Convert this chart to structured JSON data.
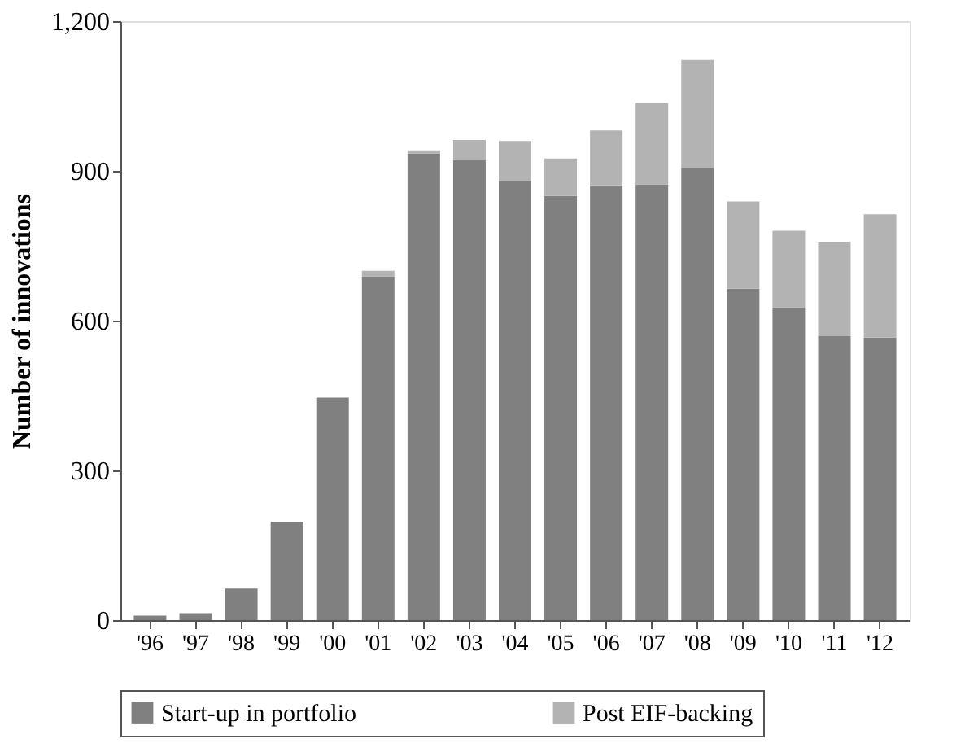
{
  "chart_data": {
    "type": "bar",
    "stacked": true,
    "ylabel": "Number of innovations",
    "categories": [
      "'96",
      "'97",
      "'98",
      "'99",
      "'00",
      "'01",
      "'02",
      "'03",
      "'04",
      "'05",
      "'06",
      "'07",
      "'08",
      "'09",
      "'10",
      "'11",
      "'12"
    ],
    "series": [
      {
        "name": "Start-up in portfolio",
        "color": "#808080",
        "values": [
          9,
          14,
          63,
          197,
          446,
          689,
          935,
          922,
          880,
          850,
          871,
          873,
          906,
          664,
          627,
          569,
          566
        ]
      },
      {
        "name": "Post EIF-backing",
        "color": "#b3b3b3",
        "values": [
          0,
          0,
          0,
          0,
          0,
          11,
          6,
          40,
          80,
          75,
          110,
          163,
          216,
          175,
          153,
          189,
          247
        ]
      }
    ],
    "ylim": [
      0,
      1200
    ],
    "yticks": [
      {
        "value": 0,
        "label": "0"
      },
      {
        "value": 300,
        "label": "300"
      },
      {
        "value": 600,
        "label": "600"
      },
      {
        "value": 900,
        "label": "900"
      },
      {
        "value": 1200,
        "label": "1,200"
      }
    ],
    "grid": false,
    "legend": "bottom"
  }
}
